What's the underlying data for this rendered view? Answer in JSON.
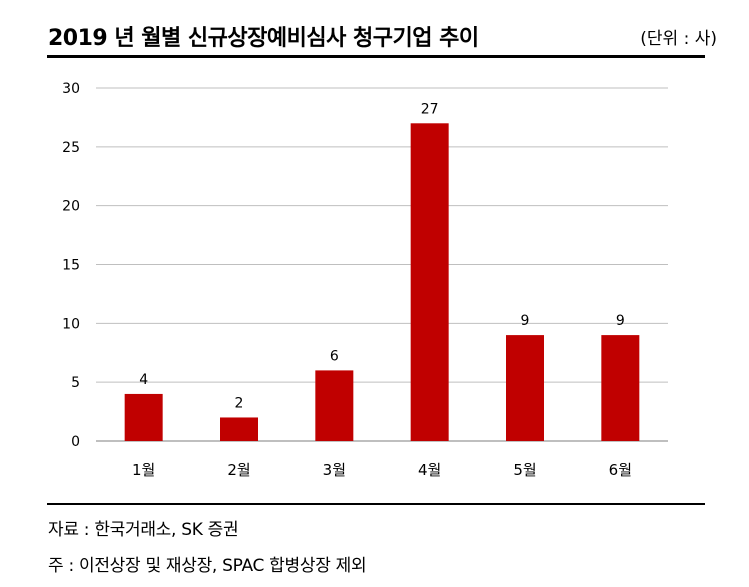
{
  "header": {
    "title": "2019 년 월별 신규상장예비심사 청구기업 추이",
    "unit": "(단위 : 사)"
  },
  "footer": {
    "source": "자료 : 한국거래소, SK 증권",
    "note": "주 : 이전상장 및 재상장, SPAC 합병상장 제외"
  },
  "colors": {
    "bar": "#c00000",
    "grid": "#bfbfbf",
    "axis": "#7f7f7f"
  },
  "chart_data": {
    "type": "bar",
    "title": "2019 년 월별 신규상장예비심사 청구기업 추이",
    "categories": [
      "1월",
      "2월",
      "3월",
      "4월",
      "5월",
      "6월"
    ],
    "values": [
      4,
      2,
      6,
      27,
      9,
      9
    ],
    "ylim": [
      0,
      30
    ],
    "yticks": [
      0,
      5,
      10,
      15,
      20,
      25,
      30
    ],
    "grid": true,
    "legend": "none",
    "data_labels": true
  }
}
